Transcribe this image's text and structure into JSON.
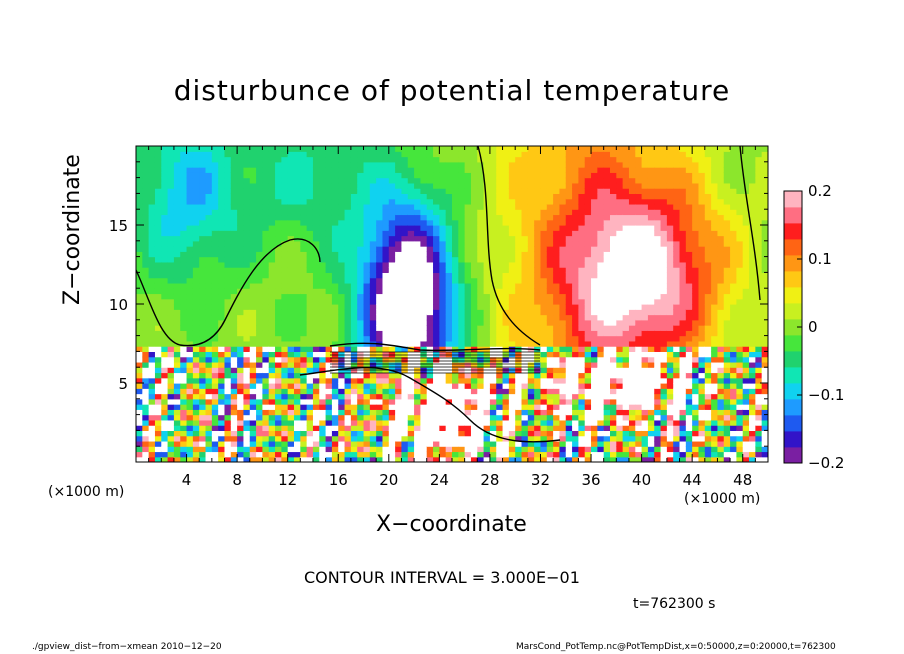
{
  "chart_data": {
    "type": "heatmap",
    "title": "disturbunce of potential temperature",
    "xlabel": "X−coordinate",
    "ylabel": "Z−coordinate",
    "x_unit": "(×1000 m)",
    "y_unit": "(×1000 m)",
    "xlim": [
      0,
      50
    ],
    "ylim": [
      0,
      20
    ],
    "x_ticks": [
      4,
      8,
      12,
      16,
      20,
      24,
      28,
      32,
      36,
      40,
      44,
      48
    ],
    "y_ticks": [
      5,
      10,
      15
    ],
    "colorbar": {
      "range": [
        -0.2,
        0.2
      ],
      "ticks": [
        {
          "value": 0.2,
          "label": "0.2"
        },
        {
          "value": 0.1,
          "label": "0.1"
        },
        {
          "value": 0.0,
          "label": "0"
        },
        {
          "value": -0.1,
          "label": "−0.1"
        },
        {
          "value": -0.2,
          "label": "−0.2"
        }
      ],
      "colors": [
        "#7a1fa2",
        "#3214c8",
        "#1e5af0",
        "#1e9bff",
        "#10d2f0",
        "#10e6b4",
        "#20d26e",
        "#46e63c",
        "#8ce62c",
        "#c8f020",
        "#f0f014",
        "#ffc814",
        "#ff9614",
        "#ff6414",
        "#ff1e1e",
        "#ff6e82",
        "#ffb4c0"
      ]
    },
    "contour_interval": "CONTOUR INTERVAL = 3.000E−01",
    "time": "t=762300 s"
  },
  "footer": {
    "left": "./gpview_dist−from−xmean  2010−12−20",
    "right": "MarsCond_PotTemp.nc@PotTempDist,x=0:50000,z=0:20000,t=762300"
  }
}
